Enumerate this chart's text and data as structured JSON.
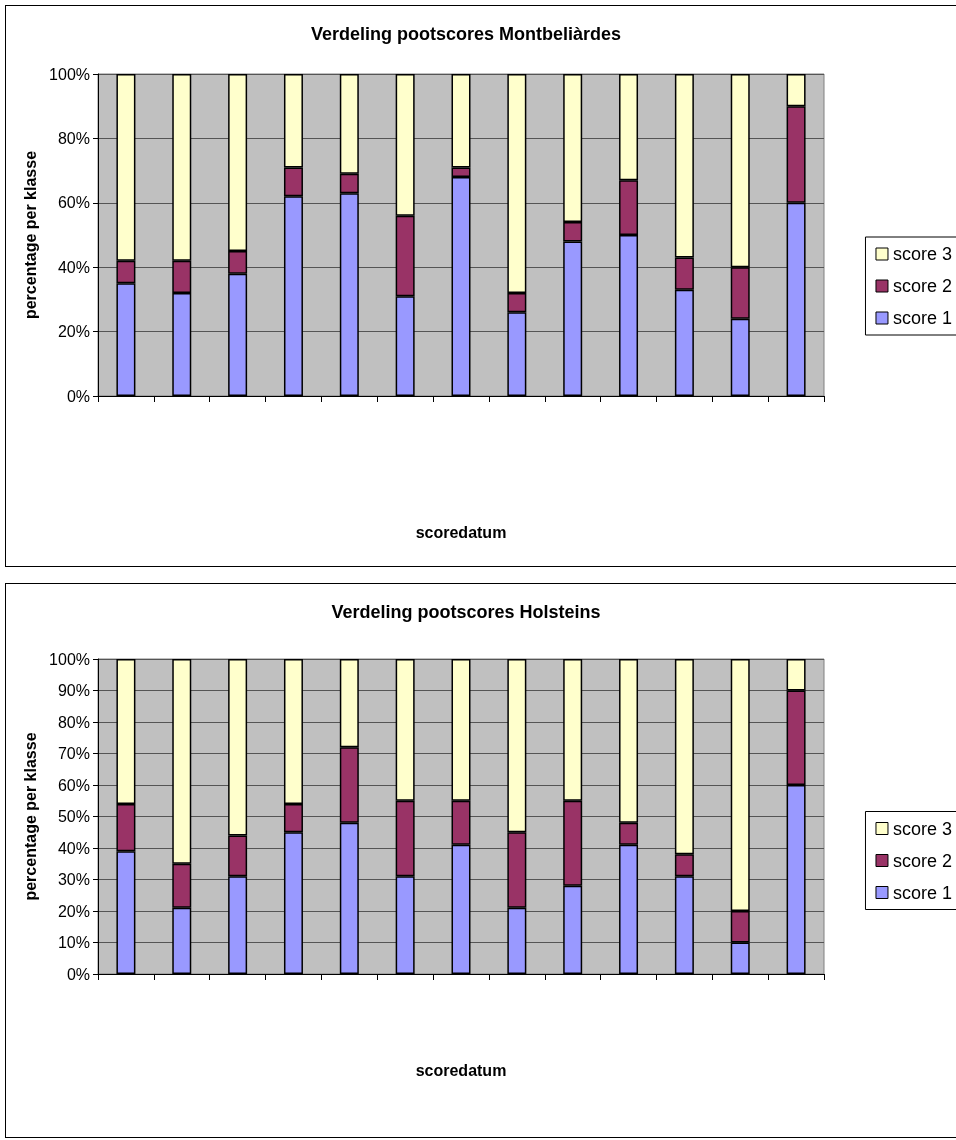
{
  "chart_data": [
    {
      "type": "bar",
      "title": "Verdeling pootscores Montbeliàrdes",
      "xlabel": "scoredatum",
      "ylabel": "percentage per klasse",
      "categories": [
        null,
        null,
        null,
        null,
        null,
        null,
        null,
        null,
        null,
        null,
        null,
        null,
        null
      ],
      "stacked": true,
      "series": [
        {
          "name": "score 1",
          "color": "#9999ff",
          "values": [
            35,
            32,
            38,
            62,
            63,
            31,
            68,
            26,
            48,
            50,
            33,
            24,
            60
          ]
        },
        {
          "name": "score 2",
          "color": "#993366",
          "values": [
            7,
            10,
            7,
            9,
            6,
            25,
            3,
            6,
            6,
            17,
            10,
            16,
            30
          ]
        },
        {
          "name": "score 3",
          "color": "#ffffcc",
          "values": [
            58,
            58,
            55,
            29,
            31,
            44,
            29,
            68,
            46,
            33,
            57,
            60,
            10
          ]
        }
      ],
      "ylim": [
        0,
        100
      ],
      "yticks": [
        {
          "value": 0,
          "label": "0%"
        },
        {
          "value": 20,
          "label": "20%"
        },
        {
          "value": 40,
          "label": "40%"
        },
        {
          "value": 60,
          "label": "60%"
        },
        {
          "value": 80,
          "label": "80%"
        },
        {
          "value": 100,
          "label": "100%"
        }
      ],
      "grid": "y",
      "legend": "right"
    },
    {
      "type": "bar",
      "title": "Verdeling pootscores Holsteins",
      "xlabel": "scoredatum",
      "ylabel": "percentage per klasse",
      "categories": [
        null,
        null,
        null,
        null,
        null,
        null,
        null,
        null,
        null,
        null,
        null,
        null,
        null
      ],
      "stacked": true,
      "series": [
        {
          "name": "score 1",
          "color": "#9999ff",
          "values": [
            39,
            21,
            31,
            45,
            48,
            31,
            41,
            21,
            28,
            41,
            31,
            10,
            60
          ]
        },
        {
          "name": "score 2",
          "color": "#993366",
          "values": [
            15,
            14,
            13,
            9,
            24,
            24,
            14,
            24,
            27,
            7,
            7,
            10,
            30
          ]
        },
        {
          "name": "score 3",
          "color": "#ffffcc",
          "values": [
            46,
            65,
            56,
            46,
            28,
            45,
            45,
            55,
            45,
            52,
            62,
            80,
            10
          ]
        }
      ],
      "ylim": [
        0,
        100
      ],
      "yticks": [
        {
          "value": 0,
          "label": "0%"
        },
        {
          "value": 10,
          "label": "10%"
        },
        {
          "value": 20,
          "label": "20%"
        },
        {
          "value": 30,
          "label": "30%"
        },
        {
          "value": 40,
          "label": "40%"
        },
        {
          "value": 50,
          "label": "50%"
        },
        {
          "value": 60,
          "label": "60%"
        },
        {
          "value": 70,
          "label": "70%"
        },
        {
          "value": 80,
          "label": "80%"
        },
        {
          "value": 90,
          "label": "90%"
        },
        {
          "value": 100,
          "label": "100%"
        }
      ],
      "grid": "y",
      "legend": "right"
    }
  ]
}
